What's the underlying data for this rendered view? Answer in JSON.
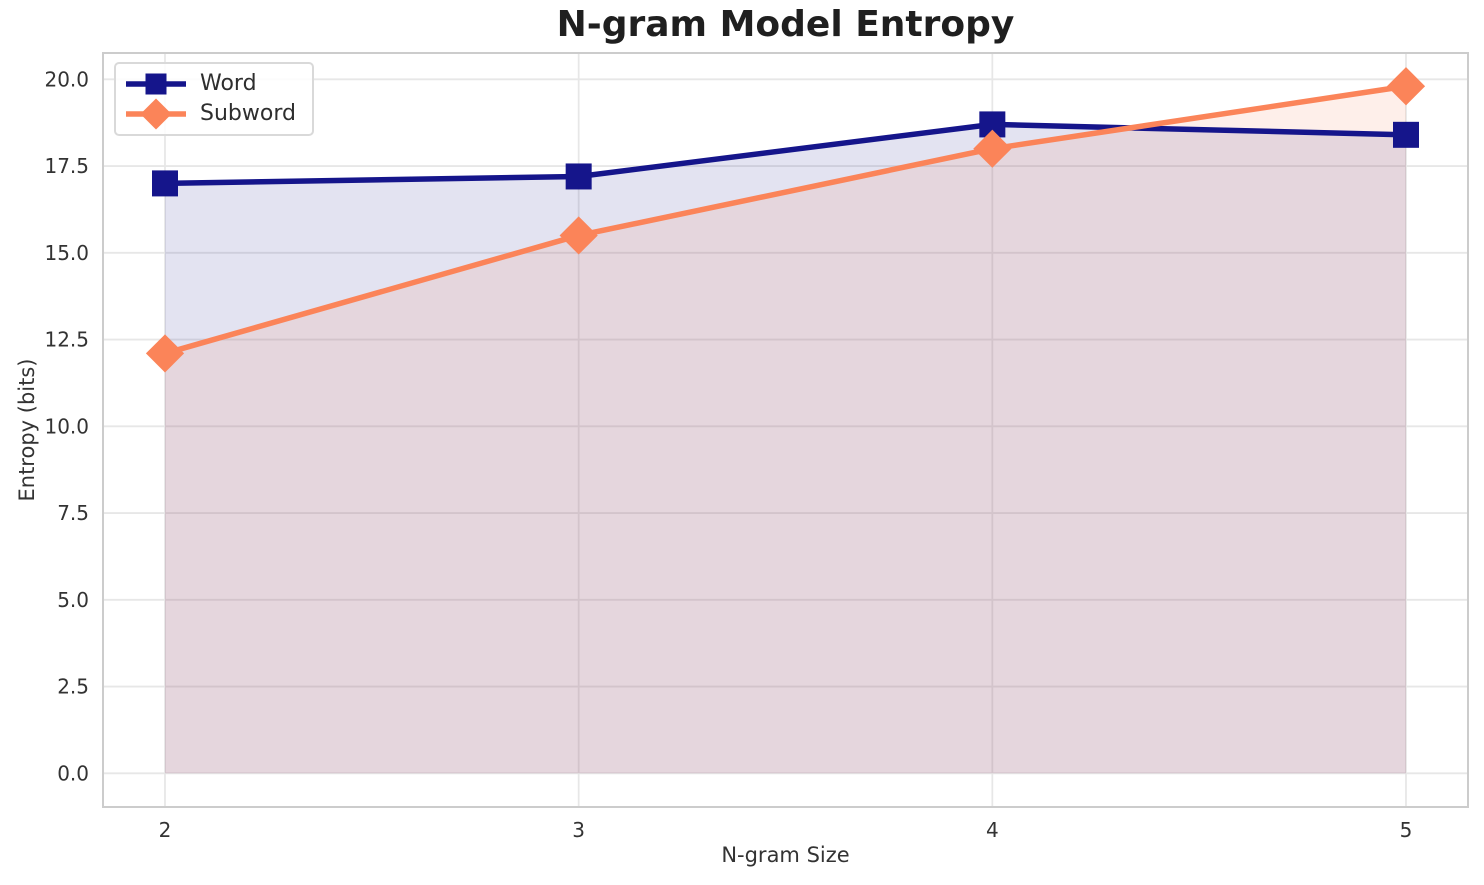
{
  "chart_data": {
    "type": "line",
    "title": "N-gram Model Entropy",
    "xlabel": "N-gram Size",
    "ylabel": "Entropy (bits)",
    "x": [
      2,
      3,
      4,
      5
    ],
    "xtick_labels": [
      "2",
      "3",
      "4",
      "5"
    ],
    "ytick_values": [
      0,
      2.5,
      5,
      7.5,
      10,
      12.5,
      15,
      17.5,
      20
    ],
    "ytick_labels": [
      "0.0",
      "2.5",
      "5.0",
      "7.5",
      "10.0",
      "12.5",
      "15.0",
      "17.5",
      "20.0"
    ],
    "ylim": [
      0,
      20
    ],
    "grid": true,
    "area_fill_to": 0,
    "legend_position": "upper-left",
    "series": [
      {
        "name": "Word",
        "values": [
          17.0,
          17.2,
          18.7,
          18.4
        ],
        "color": "#15158b",
        "marker": "square",
        "fill_opacity": 0.12
      },
      {
        "name": "Subword",
        "values": [
          12.1,
          15.5,
          18.0,
          19.8
        ],
        "color": "#fb8459",
        "marker": "diamond",
        "fill_opacity": 0.13
      }
    ]
  },
  "colors": {
    "background": "#ffffff",
    "grid": "#e7e7e7",
    "spine": "#cccccc",
    "tick_label": "#333333",
    "title": "#1f1f1f"
  }
}
